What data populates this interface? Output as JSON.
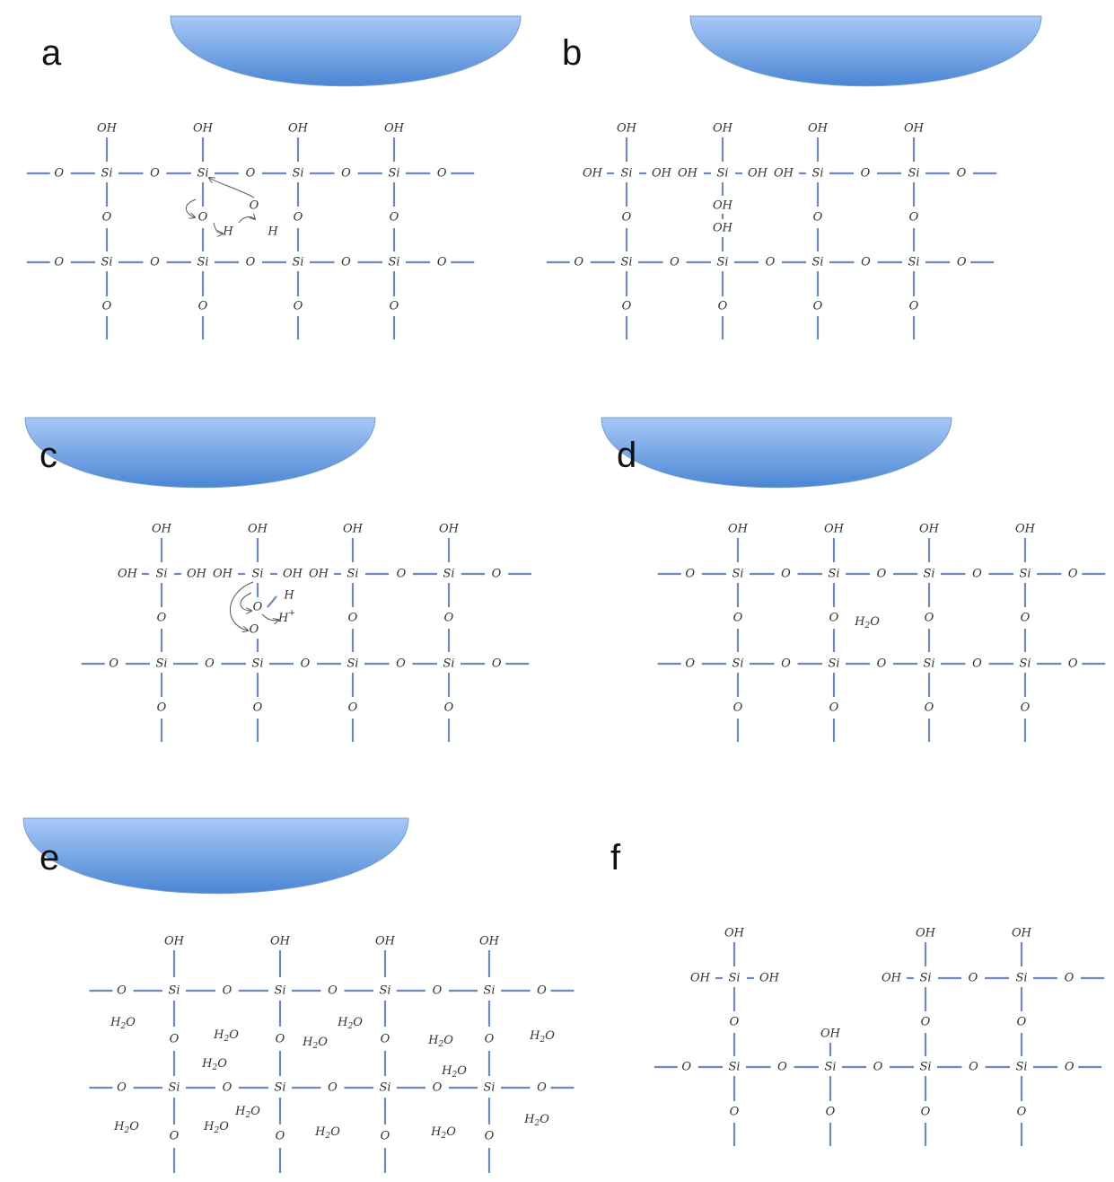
{
  "panels": {
    "a": {
      "label": "a"
    },
    "b": {
      "label": "b"
    },
    "c": {
      "label": "c"
    },
    "d": {
      "label": "d"
    },
    "e": {
      "label": "e"
    },
    "f": {
      "label": "f"
    }
  },
  "atoms": {
    "si": "Si",
    "o": "O",
    "oh": "OH",
    "h": "H",
    "h_plus": "H",
    "plus": "+",
    "water_h": "H",
    "water_sub": "2",
    "water_o": "O"
  },
  "colors": {
    "bond": "#6b8cb8",
    "droplet_top": "#a8c8f8",
    "droplet_bottom": "#4a86d4"
  }
}
